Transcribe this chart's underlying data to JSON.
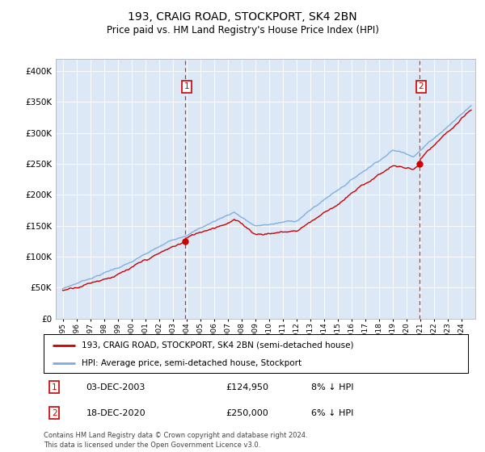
{
  "title": "193, CRAIG ROAD, STOCKPORT, SK4 2BN",
  "subtitle": "Price paid vs. HM Land Registry's House Price Index (HPI)",
  "legend_line1": "193, CRAIG ROAD, STOCKPORT, SK4 2BN (semi-detached house)",
  "legend_line2": "HPI: Average price, semi-detached house, Stockport",
  "annotation1_label": "1",
  "annotation1_date": "03-DEC-2003",
  "annotation1_price": 124950,
  "annotation1_hpi": "8% ↓ HPI",
  "annotation2_label": "2",
  "annotation2_date": "18-DEC-2020",
  "annotation2_price": 250000,
  "annotation2_hpi": "6% ↓ HPI",
  "footer": "Contains HM Land Registry data © Crown copyright and database right 2024.\nThis data is licensed under the Open Government Licence v3.0.",
  "hpi_color": "#7aade0",
  "price_color": "#cc0000",
  "annotation_color": "#cc0000",
  "plot_bg_color": "#dce8f5",
  "ylim": [
    0,
    420000
  ],
  "yticks": [
    0,
    50000,
    100000,
    150000,
    200000,
    250000,
    300000,
    350000,
    400000
  ],
  "sale1_year": 2003.92,
  "sale1_price": 124950,
  "sale2_year": 2020.96,
  "sale2_price": 250000,
  "xmin": 1994.5,
  "xmax": 2025.0
}
